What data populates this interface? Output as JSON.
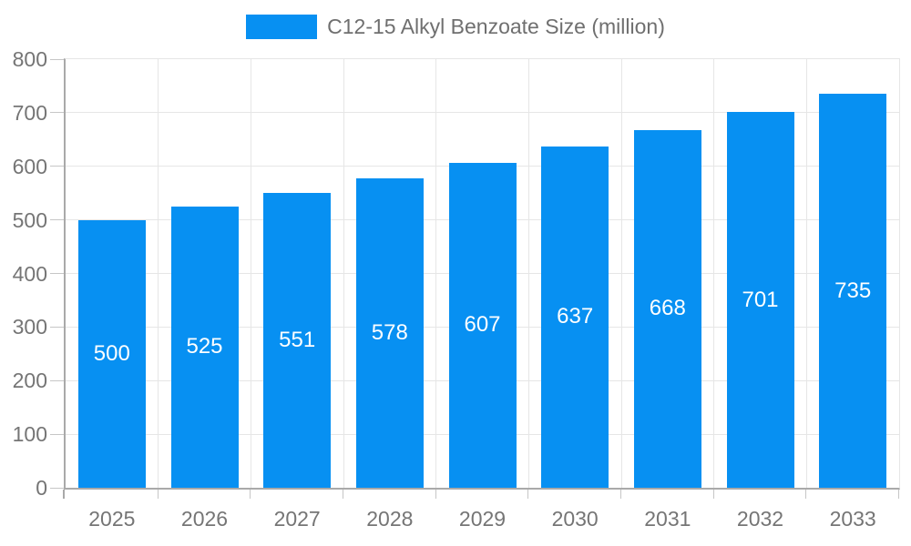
{
  "chart_data": {
    "type": "bar",
    "title": "C12-15 Alkyl Benzoate Size (million)",
    "categories": [
      "2025",
      "2026",
      "2027",
      "2028",
      "2029",
      "2030",
      "2031",
      "2032",
      "2033"
    ],
    "values": [
      500,
      525,
      551,
      578,
      607,
      637,
      668,
      701,
      735
    ],
    "data_labels": [
      "500",
      "525",
      "551",
      "578",
      "607",
      "637",
      "668",
      "701",
      "735"
    ],
    "xlabel": "",
    "ylabel": "",
    "ylim": [
      0,
      800
    ],
    "yticks": [
      0,
      100,
      200,
      300,
      400,
      500,
      600,
      700,
      800
    ],
    "grid": true,
    "legend_position": "top",
    "data_label_position": "inside-center"
  },
  "legend": {
    "label": "C12-15 Alkyl Benzoate Size (million)"
  },
  "style": {
    "bar_color": "#0790f2",
    "data_label_color": "#ffffff",
    "axis_text_color": "#757575",
    "legend_text_color": "#6f6f6f",
    "grid_color": "#e6e6e6",
    "axis_line_color": "#a9a9a9",
    "tick_color": "#c6c6c6",
    "background_color": "#ffffff"
  }
}
